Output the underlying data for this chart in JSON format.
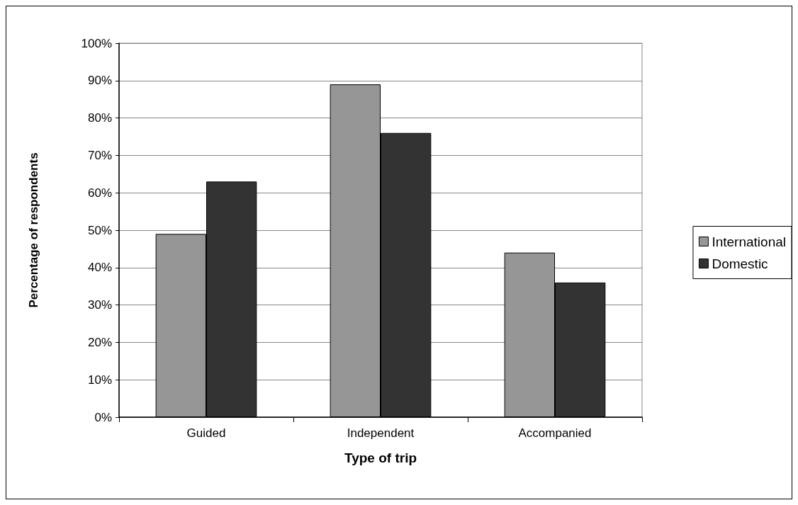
{
  "chart_data": {
    "type": "bar",
    "xlabel": "Type of trip",
    "ylabel": "Percentage of respondents",
    "categories": [
      "Guided",
      "Independent",
      "Accompanied"
    ],
    "series": [
      {
        "name": "International",
        "color": "#969696",
        "values": [
          49,
          89,
          44
        ]
      },
      {
        "name": "Domestic",
        "color": "#333333",
        "values": [
          63,
          76,
          36
        ]
      }
    ],
    "ylim": [
      0,
      100
    ],
    "yticks": [
      {
        "value": 0,
        "label": "0%"
      },
      {
        "value": 10,
        "label": "10%"
      },
      {
        "value": 20,
        "label": "20%"
      },
      {
        "value": 30,
        "label": "30%"
      },
      {
        "value": 40,
        "label": "40%"
      },
      {
        "value": 50,
        "label": "50%"
      },
      {
        "value": 60,
        "label": "60%"
      },
      {
        "value": 70,
        "label": "70%"
      },
      {
        "value": 80,
        "label": "80%"
      },
      {
        "value": 90,
        "label": "90%"
      },
      {
        "value": 100,
        "label": "100%"
      }
    ],
    "grid": "y",
    "legend": "right"
  }
}
